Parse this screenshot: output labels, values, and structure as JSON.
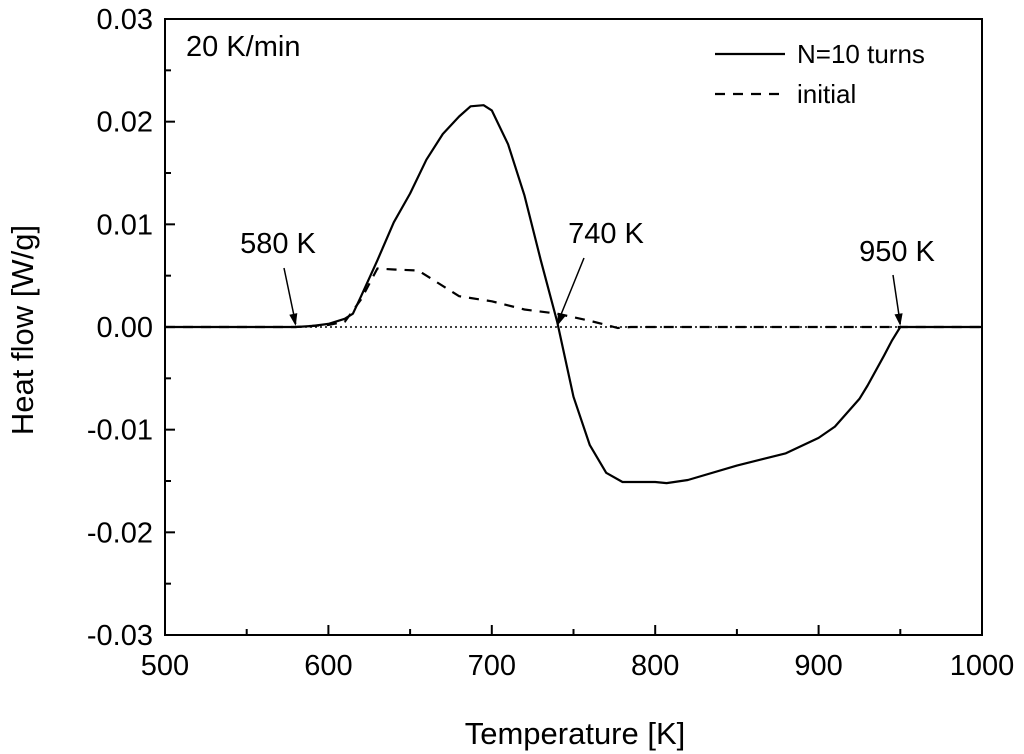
{
  "chart_data": {
    "type": "line",
    "xlabel": "Temperature [K]",
    "ylabel": "Heat flow [W/g]",
    "xlim": [
      500,
      1000
    ],
    "ylim": [
      -0.03,
      0.03
    ],
    "x_ticks": [
      500,
      600,
      700,
      800,
      900,
      1000
    ],
    "x_tick_labels": [
      "500",
      "600",
      "700",
      "800",
      "900",
      "1000"
    ],
    "y_ticks": [
      -0.03,
      -0.02,
      -0.01,
      0.0,
      0.01,
      0.02,
      0.03
    ],
    "y_tick_labels": [
      "-0.03",
      "-0.02",
      "-0.01",
      "0.00",
      "0.01",
      "0.02",
      "0.03"
    ],
    "grid": false,
    "legend_position": "top-right",
    "rate_label": "20 K/min",
    "baseline": 0.0,
    "series": [
      {
        "name": "N=10 turns",
        "style": "solid",
        "color": "#000000",
        "points": [
          [
            500,
            0
          ],
          [
            580,
            0
          ],
          [
            590,
            0.0001
          ],
          [
            600,
            0.0003
          ],
          [
            610,
            0.0008
          ],
          [
            615,
            0.0013
          ],
          [
            620,
            0.003
          ],
          [
            630,
            0.0065
          ],
          [
            640,
            0.0102
          ],
          [
            650,
            0.013
          ],
          [
            660,
            0.0163
          ],
          [
            670,
            0.0188
          ],
          [
            680,
            0.0205
          ],
          [
            687,
            0.0215
          ],
          [
            695,
            0.0216
          ],
          [
            700,
            0.0211
          ],
          [
            710,
            0.0178
          ],
          [
            720,
            0.0128
          ],
          [
            730,
            0.0065
          ],
          [
            740,
            0.0005
          ],
          [
            750,
            -0.0068
          ],
          [
            760,
            -0.0115
          ],
          [
            770,
            -0.0142
          ],
          [
            780,
            -0.0151
          ],
          [
            800,
            -0.0151
          ],
          [
            807,
            -0.0152
          ],
          [
            820,
            -0.0149
          ],
          [
            850,
            -0.0135
          ],
          [
            880,
            -0.0123
          ],
          [
            900,
            -0.0108
          ],
          [
            910,
            -0.0097
          ],
          [
            925,
            -0.007
          ],
          [
            930,
            -0.0057
          ],
          [
            940,
            -0.0028
          ],
          [
            945,
            -0.0013
          ],
          [
            950,
            0
          ],
          [
            960,
            0
          ],
          [
            1000,
            0
          ]
        ]
      },
      {
        "name": "initial",
        "style": "dashed",
        "color": "#000000",
        "points": [
          [
            500,
            0
          ],
          [
            580,
            0
          ],
          [
            600,
            0.0002
          ],
          [
            610,
            0.0005
          ],
          [
            620,
            0.0027
          ],
          [
            630,
            0.0057
          ],
          [
            640,
            0.0056
          ],
          [
            655,
            0.0055
          ],
          [
            665,
            0.0045
          ],
          [
            680,
            0.003
          ],
          [
            700,
            0.0025
          ],
          [
            720,
            0.0017
          ],
          [
            740,
            0.0013
          ],
          [
            760,
            0.0006
          ],
          [
            770,
            0.0002
          ],
          [
            777,
            -0.0001
          ],
          [
            785,
            0
          ],
          [
            1000,
            0
          ]
        ]
      }
    ],
    "annotations": [
      {
        "text": "580 K",
        "x": 580,
        "y": 0.0
      },
      {
        "text": "740 K",
        "x": 740,
        "y": 0.0
      },
      {
        "text": "950 K",
        "x": 950,
        "y": 0.0
      }
    ]
  }
}
